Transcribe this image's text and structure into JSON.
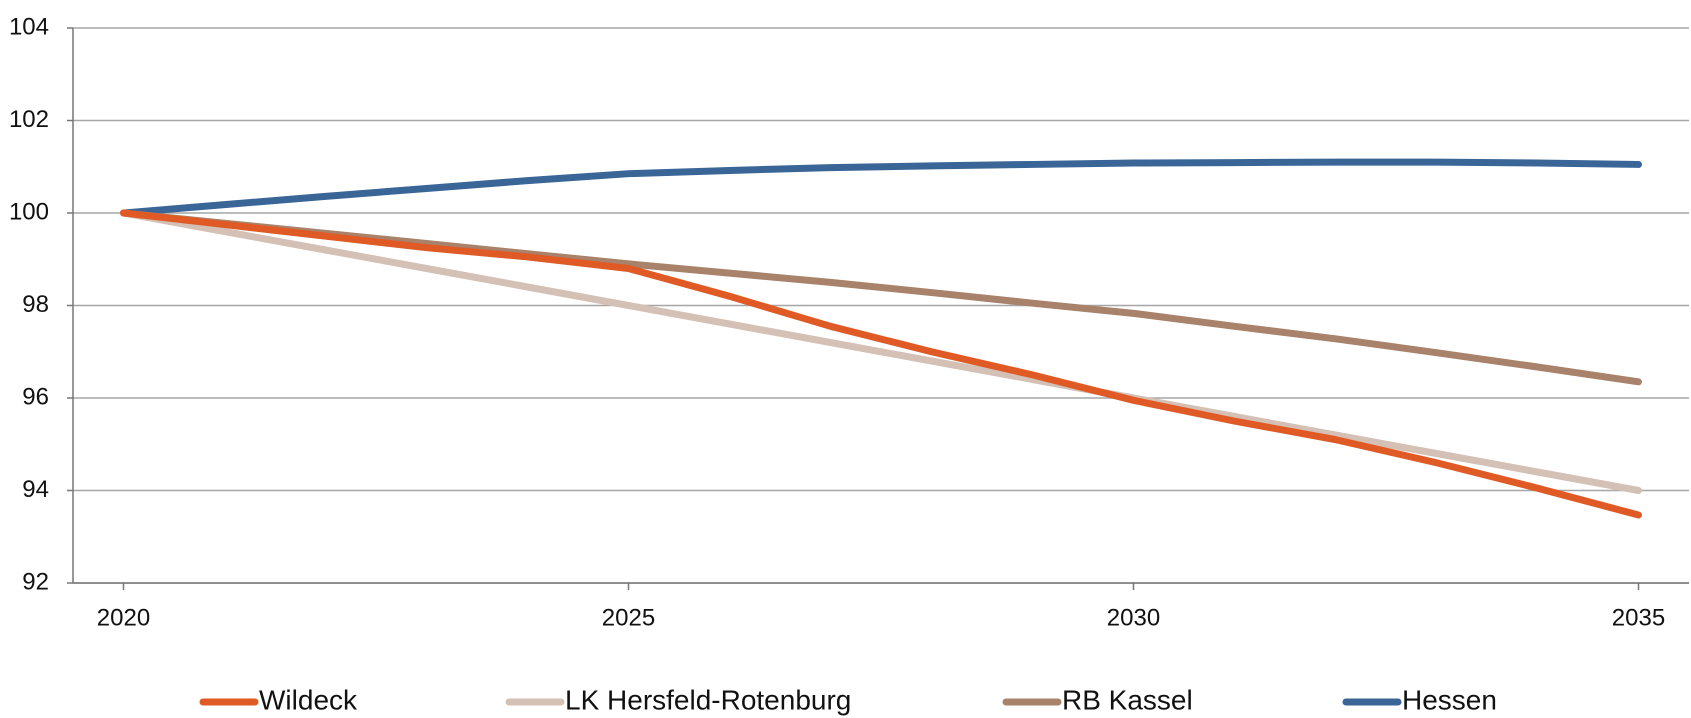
{
  "chart_data": {
    "type": "line",
    "x": [
      2020,
      2021,
      2022,
      2023,
      2024,
      2025,
      2026,
      2027,
      2028,
      2029,
      2030,
      2031,
      2032,
      2033,
      2034,
      2035
    ],
    "series": [
      {
        "name": "Wildeck",
        "color": "#e05a26",
        "values": [
          100,
          99.75,
          99.5,
          99.25,
          99.05,
          98.8,
          98.2,
          97.55,
          97.0,
          96.5,
          95.95,
          95.5,
          95.1,
          94.6,
          94.05,
          93.47
        ]
      },
      {
        "name": "LK Hersfeld-Rotenburg",
        "color": "#d4c0b4",
        "values": [
          100,
          99.6,
          99.2,
          98.8,
          98.4,
          98.0,
          97.6,
          97.2,
          96.8,
          96.4,
          96.0,
          95.6,
          95.2,
          94.8,
          94.4,
          94.0
        ]
      },
      {
        "name": "RB Kassel",
        "color": "#a8826a",
        "values": [
          100,
          99.78,
          99.56,
          99.34,
          99.12,
          98.9,
          98.7,
          98.5,
          98.28,
          98.05,
          97.83,
          97.55,
          97.28,
          96.98,
          96.67,
          96.35
        ]
      },
      {
        "name": "Hessen",
        "color": "#3a6597",
        "values": [
          100,
          100.18,
          100.36,
          100.53,
          100.7,
          100.85,
          100.92,
          100.98,
          101.02,
          101.05,
          101.08,
          101.09,
          101.1,
          101.1,
          101.08,
          101.05
        ]
      }
    ],
    "xlim": [
      2019.5,
      2035.5
    ],
    "xticks": [
      2020,
      2025,
      2030,
      2035
    ],
    "ylim": [
      92,
      104
    ],
    "yticks": [
      92,
      94,
      96,
      98,
      100,
      102,
      104
    ],
    "grid": true,
    "legend": "bottom"
  }
}
